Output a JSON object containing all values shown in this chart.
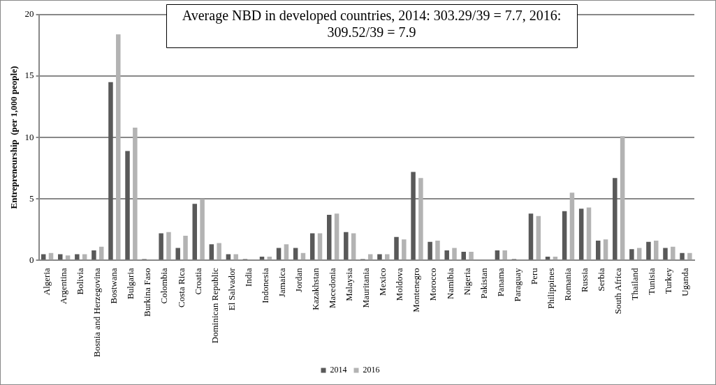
{
  "chart_data": {
    "type": "bar",
    "ylabel": "Entrepreneurship  (per 1,000 people)",
    "categories": [
      "Algeria",
      "Argentina",
      "Bolivia",
      "Bosnia and Herzegovina",
      "Bostwana",
      "Bulgaria",
      "Burkina Faso",
      "Colombia",
      "Costa Rica",
      "Croatia",
      "Dominican Republic",
      "El Salvador",
      "India",
      "Indonesia",
      "Jamaica",
      "Jordan",
      "Kazakhstan",
      "Macedonia",
      "Malaysia",
      "Mauritania",
      "Mexico",
      "Moldova",
      "Montenegro",
      "Morocco",
      "Namibia",
      "Nigeria",
      "Pakistan",
      "Panama",
      "Paraguay",
      "Peru",
      "Philippines",
      "Romania",
      "Russia",
      "Serbia",
      "South Africa",
      "Thailand",
      "Tunisia",
      "Turkey",
      "Uganda"
    ],
    "series": [
      {
        "name": "2014",
        "color": "#595959",
        "values": [
          0.5,
          0.5,
          0.5,
          0.8,
          14.5,
          8.9,
          0.1,
          2.2,
          1.0,
          4.6,
          1.3,
          0.5,
          0.1,
          0.3,
          1.0,
          1.0,
          2.2,
          3.7,
          2.3,
          0.1,
          0.5,
          1.9,
          7.2,
          1.5,
          0.8,
          0.7,
          0.05,
          0.8,
          0.1,
          3.8,
          0.3,
          4.0,
          4.2,
          1.6,
          6.7,
          0.9,
          1.5,
          1.0,
          0.6
        ]
      },
      {
        "name": "2016",
        "color": "#b3b3b3",
        "values": [
          0.6,
          0.4,
          0.5,
          1.1,
          18.4,
          10.8,
          null,
          2.3,
          2.0,
          5.0,
          1.4,
          0.5,
          null,
          0.3,
          1.3,
          0.6,
          2.2,
          3.8,
          2.2,
          0.5,
          0.5,
          1.7,
          6.7,
          1.6,
          1.0,
          0.7,
          null,
          0.8,
          null,
          3.6,
          0.3,
          5.5,
          4.3,
          1.7,
          10.1,
          1.0,
          1.6,
          1.1,
          0.6
        ]
      }
    ],
    "ylim": [
      0,
      20
    ],
    "yticks": [
      0,
      5,
      10,
      15,
      20
    ],
    "grid": "y",
    "legend": "bottom",
    "annotations": [
      "Average NBD in developed countries, 2014: 303.29/39 = 7.7, 2016: 309.52/39 = 7.9"
    ]
  }
}
